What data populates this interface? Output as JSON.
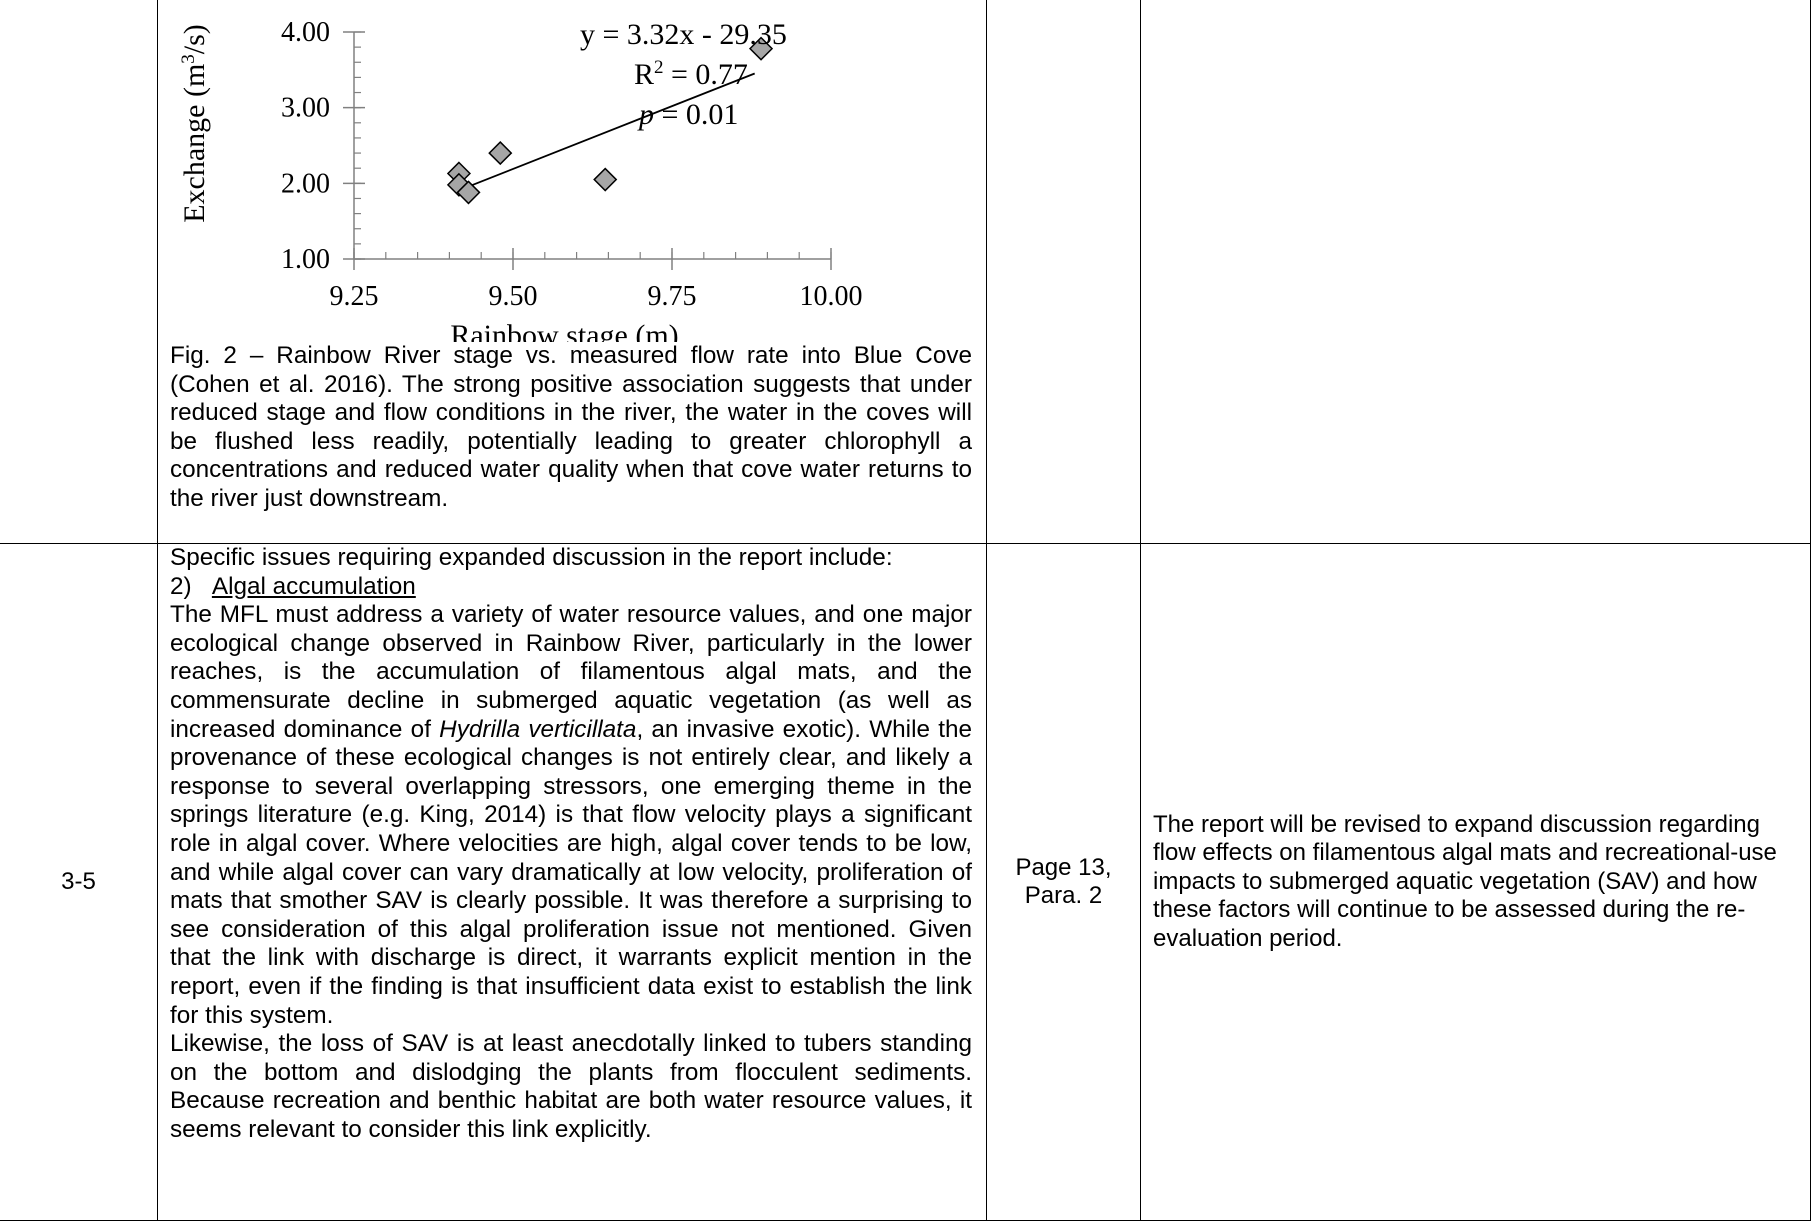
{
  "row1": {
    "figure": {
      "caption": "Fig. 2 – Rainbow River stage vs. measured flow rate into Blue Cove (Cohen et al. 2016). The strong positive association suggests that under reduced stage and flow conditions in the river, the water in the coves will be flushed less readily, potentially leading to greater chlorophyll a concentrations and reduced water quality when that cove water returns to the river just downstream."
    }
  },
  "row2": {
    "id": "3-5",
    "comment": {
      "intro": "Specific issues requiring expanded discussion in the report include:",
      "item_number": "2)",
      "item_title": "Algal accumulation",
      "para1_a": "The MFL must address a variety of water resource values, and one major ecological change observed in Rainbow River, particularly in the lower reaches, is the accumulation of filamentous algal mats, and the commensurate decline in submerged aquatic vegetation (as well as increased dominance of ",
      "para1_species": "Hydrilla verticillata",
      "para1_b": ", an invasive exotic). While the provenance of these ecological changes is not entirely clear, and likely a response to several overlapping stressors, one emerging theme in the springs literature (e.g. King, 2014) is that flow velocity plays a significant role in algal cover. Where velocities are high, algal cover tends to be low, and while algal cover can vary dramatically at low velocity, proliferation of mats that smother SAV is clearly possible. It was therefore a surprising to see consideration of this algal proliferation issue not mentioned. Given that the link with discharge is direct, it warrants explicit mention in the report, even if the finding is that insufficient data exist to establish the link for this system.",
      "para2": "Likewise, the loss of SAV is at least anecdotally linked to tubers standing on the bottom and dislodging the plants from flocculent sediments. Because recreation and benthic habitat are both water resource values, it seems relevant to consider this link explicitly."
    },
    "location_line1": "Page 13,",
    "location_line2": "Para. 2",
    "response": "The report will be revised to expand discussion regarding flow effects on filamentous algal mats and recreational-use impacts to submerged aquatic vegetation (SAV) and how these factors will continue to be assessed during the re-evaluation period."
  },
  "chart_data": {
    "type": "scatter",
    "xlabel": "Rainbow stage (m)",
    "ylabel_main": "Exchange (m",
    "ylabel_sup": "3",
    "ylabel_end": "/s)",
    "x_ticks": [
      "9.25",
      "9.50",
      "9.75",
      "10.00"
    ],
    "y_ticks": [
      "1.00",
      "2.00",
      "3.00",
      "4.00"
    ],
    "xlim": [
      9.25,
      10.0
    ],
    "ylim": [
      1.0,
      4.0
    ],
    "x_minor_step": 0.05,
    "y_minor_step": 0.2,
    "points": [
      {
        "x": 9.415,
        "y": 2.13
      },
      {
        "x": 9.415,
        "y": 1.98
      },
      {
        "x": 9.43,
        "y": 1.88
      },
      {
        "x": 9.48,
        "y": 2.4
      },
      {
        "x": 9.645,
        "y": 2.05
      },
      {
        "x": 9.89,
        "y": 3.78
      }
    ],
    "trendline": {
      "slope": 3.32,
      "intercept": -29.35,
      "x_start": 9.42,
      "x_end": 9.88
    },
    "equation": "y = 3.32x - 29.35",
    "r2_label": "R",
    "r2_sup": "2",
    "r2_value": " = 0.77",
    "p_label": "p",
    "p_value": " = 0.01",
    "marker_fill": "#a6a6a6"
  }
}
